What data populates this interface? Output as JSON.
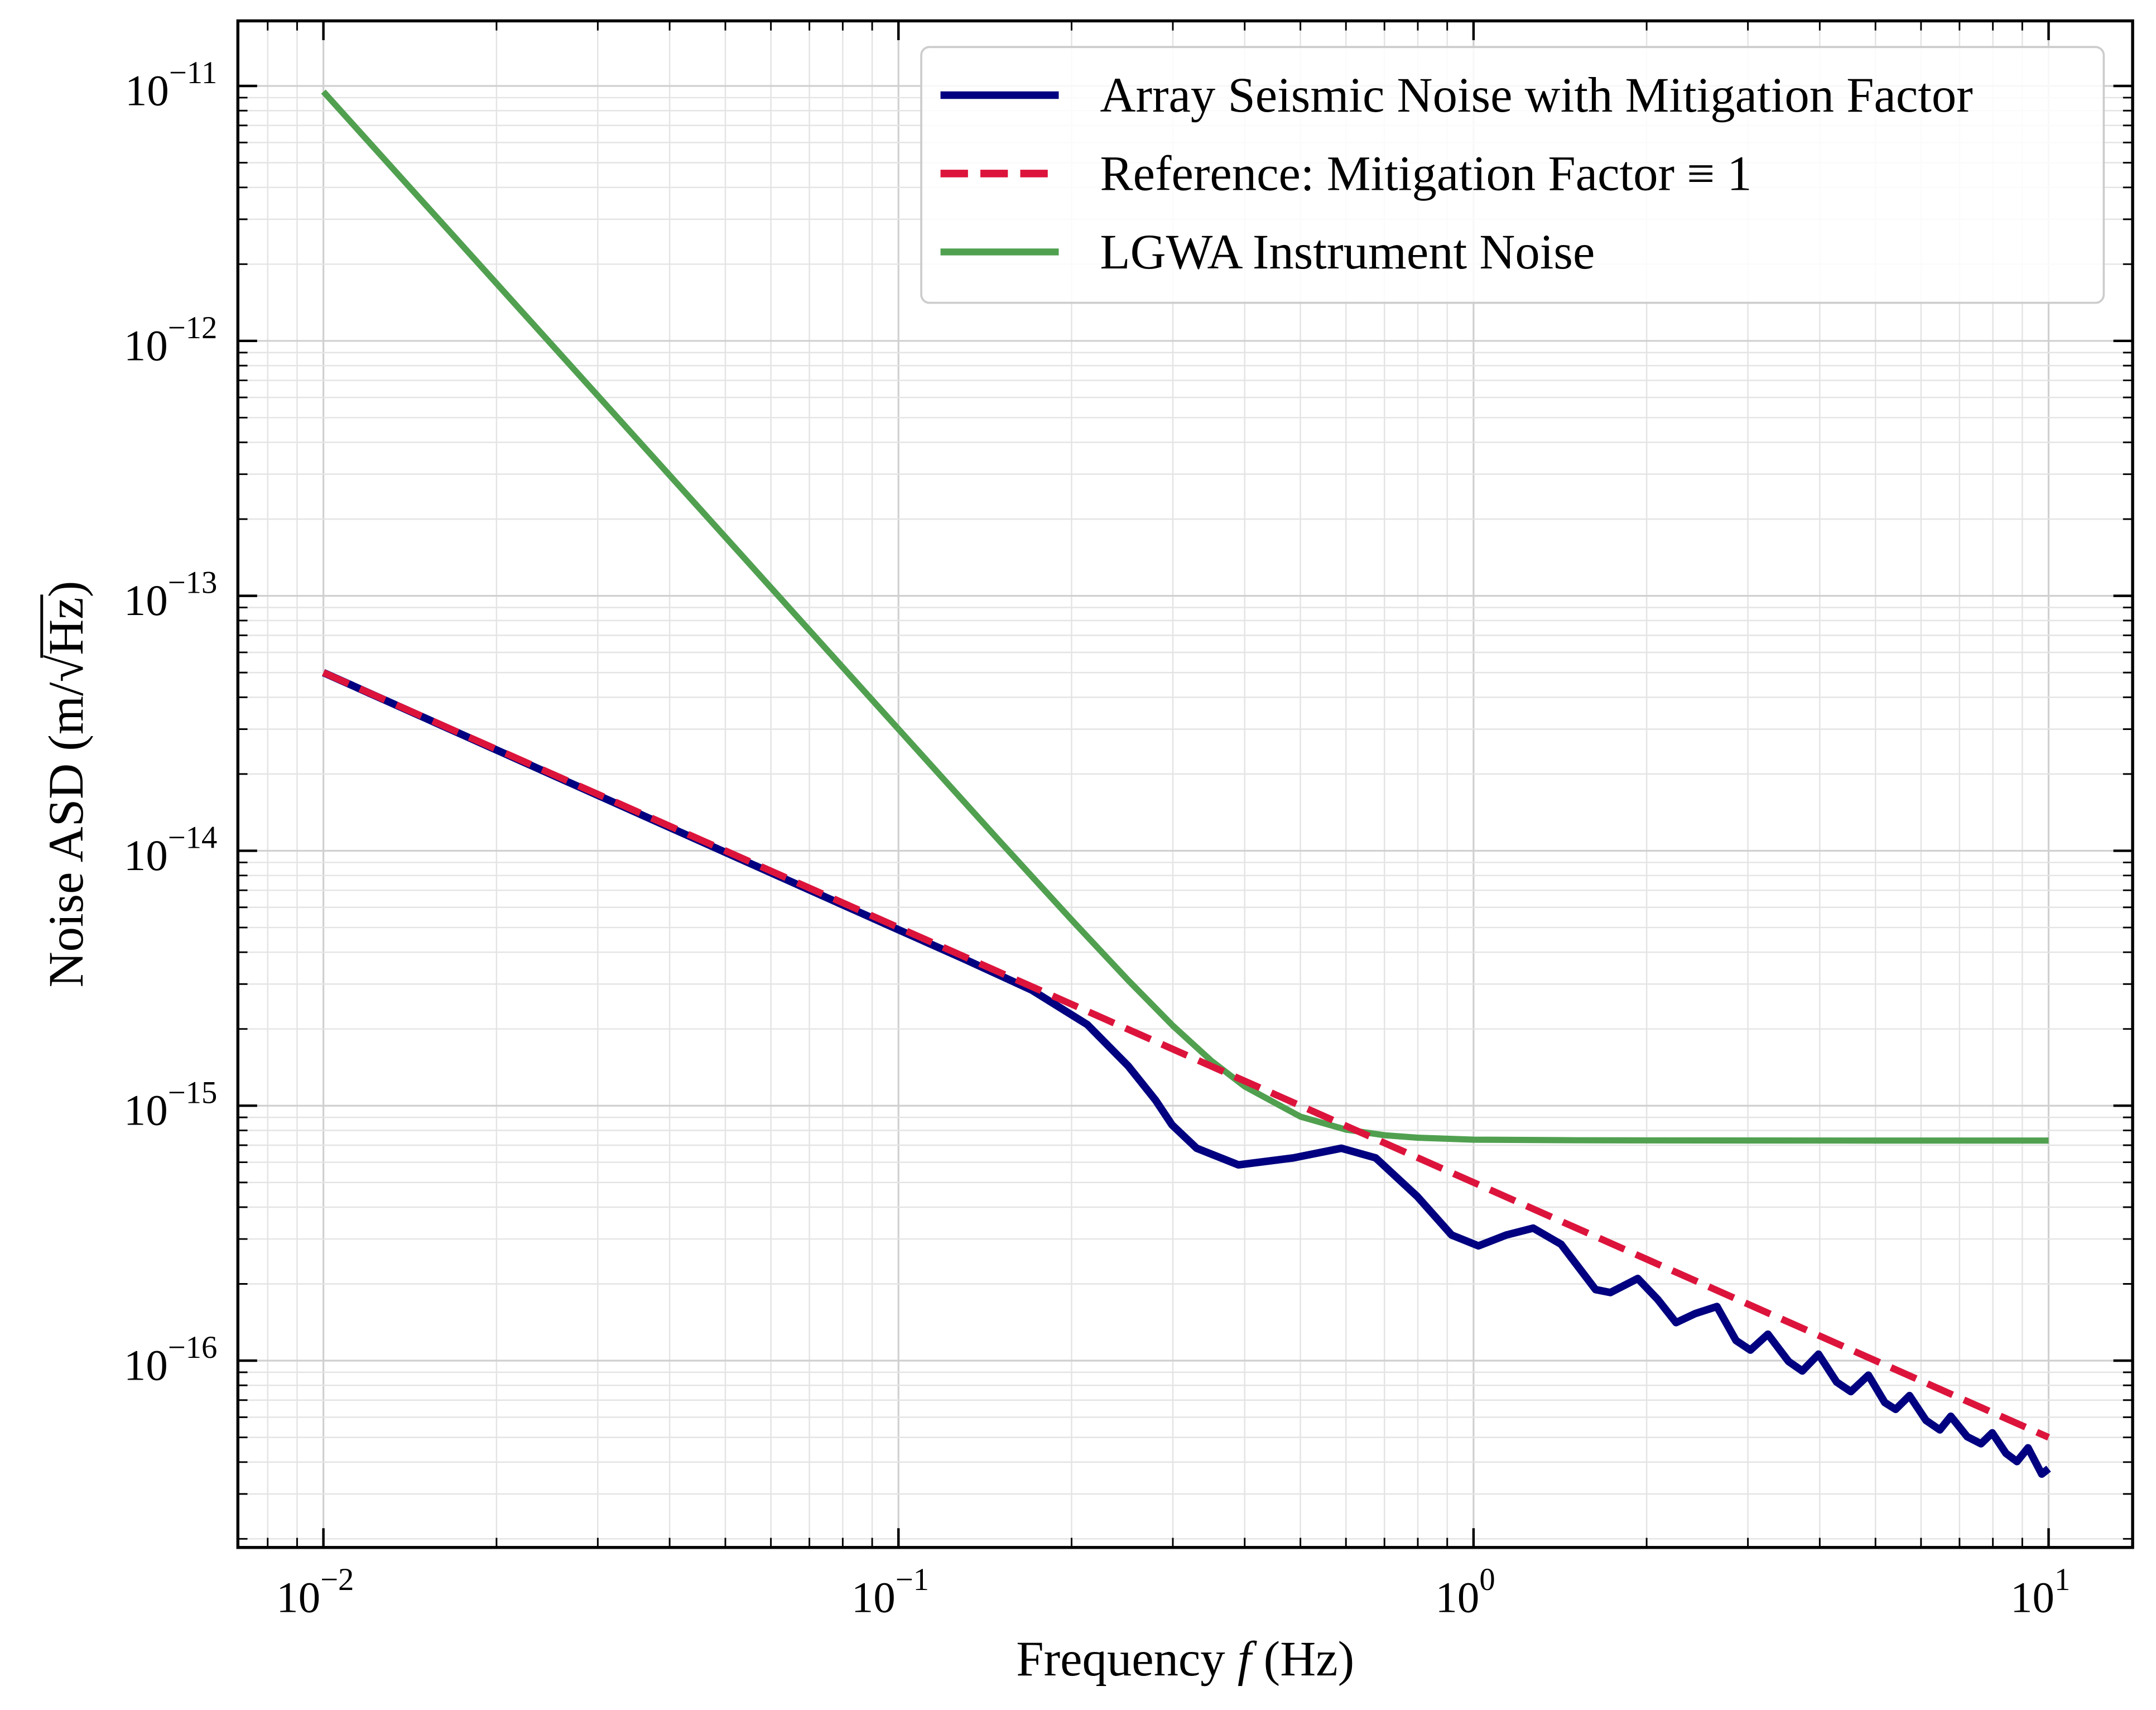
{
  "chart_data": {
    "type": "line",
    "xlabel_prefix": "Frequency ",
    "xlabel_var": "f",
    "xlabel_unit": " (Hz)",
    "ylabel_prefix": "Noise ASD (m/",
    "ylabel_sqrt": "√",
    "ylabel_radicand": "Hz",
    "ylabel_suffix": ")",
    "xscale": "log",
    "yscale": "log",
    "xlim": [
      0.0071,
      14.0
    ],
    "ylim": [
      1.85e-17,
      1.8e-11
    ],
    "grid": true,
    "grid_minor": true,
    "legend_position": "top-right",
    "xticks": [
      {
        "value": 0.01,
        "base": "10",
        "exp": "−2"
      },
      {
        "value": 0.1,
        "base": "10",
        "exp": "−1"
      },
      {
        "value": 1,
        "base": "10",
        "exp": "0"
      },
      {
        "value": 10,
        "base": "10",
        "exp": "1"
      }
    ],
    "yticks": [
      {
        "value": 1e-11,
        "base": "10",
        "exp": "−11"
      },
      {
        "value": 1e-12,
        "base": "10",
        "exp": "−12"
      },
      {
        "value": 1e-13,
        "base": "10",
        "exp": "−13"
      },
      {
        "value": 1e-14,
        "base": "10",
        "exp": "−14"
      },
      {
        "value": 1e-15,
        "base": "10",
        "exp": "−15"
      },
      {
        "value": 1e-16,
        "base": "10",
        "exp": "−16"
      }
    ],
    "series": [
      {
        "name": "Array Seismic Noise with Mitigation Factor",
        "color": "#000080",
        "style": "solid",
        "x": [
          0.01,
          0.1,
          0.1295,
          0.1706,
          0.213,
          0.251,
          0.28,
          0.299,
          0.33,
          0.39,
          0.486,
          0.589,
          0.676,
          0.798,
          0.916,
          1.02,
          1.14,
          1.27,
          1.42,
          1.63,
          1.73,
          1.93,
          2.09,
          2.25,
          2.43,
          2.65,
          2.86,
          3.03,
          3.25,
          3.53,
          3.73,
          3.98,
          4.28,
          4.53,
          4.86,
          5.19,
          5.42,
          5.73,
          6.12,
          6.47,
          6.76,
          7.22,
          7.63,
          7.98,
          8.43,
          8.81,
          9.21,
          9.73,
          10.0
        ],
        "y": [
          5e-14,
          4.9e-15,
          3.78e-15,
          2.84e-15,
          2.08e-15,
          1.43e-15,
          1.05e-15,
          8.41e-16,
          6.81e-16,
          5.86e-16,
          6.24e-16,
          6.81e-16,
          6.24e-16,
          4.41e-16,
          3.11e-16,
          2.82e-16,
          3.11e-16,
          3.31e-16,
          2.86e-16,
          1.9e-16,
          1.85e-16,
          2.1e-16,
          1.74e-16,
          1.41e-16,
          1.53e-16,
          1.63e-16,
          1.2e-16,
          1.1e-16,
          1.27e-16,
          9.93e-17,
          9.11e-17,
          1.06e-16,
          8.24e-17,
          7.56e-17,
          8.77e-17,
          6.85e-17,
          6.44e-17,
          7.29e-17,
          5.83e-17,
          5.35e-17,
          6.05e-17,
          5.03e-17,
          4.72e-17,
          5.21e-17,
          4.33e-17,
          4.02e-17,
          4.55e-17,
          3.59e-17,
          3.77e-17
        ]
      },
      {
        "name": "Reference: Mitigation Factor ≡ 1",
        "color": "#dc143c",
        "style": "dashed",
        "x": [
          0.01,
          10
        ],
        "y": [
          5e-14,
          5e-17
        ]
      },
      {
        "name": "LGWA Instrument Noise",
        "color": "#50a050",
        "style": "solid",
        "x": [
          0.01,
          0.02,
          0.05,
          0.1,
          0.15,
          0.2,
          0.25,
          0.3,
          0.35,
          0.4,
          0.5,
          0.6,
          0.7,
          0.8,
          1.0,
          1.5,
          2,
          5,
          10
        ],
        "y": [
          9.5e-12,
          1.68e-12,
          1.7e-13,
          3e-14,
          1.09e-14,
          5.36e-15,
          3.13e-15,
          2.06e-15,
          1.5e-15,
          1.19e-15,
          9.06e-16,
          8.06e-16,
          7.66e-16,
          7.49e-16,
          7.36e-16,
          7.32e-16,
          7.31e-16,
          7.3e-16,
          7.3e-16
        ]
      }
    ]
  }
}
